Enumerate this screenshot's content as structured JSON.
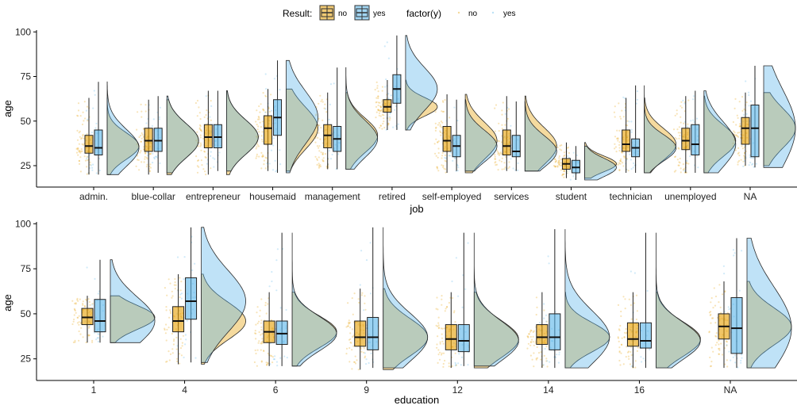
{
  "legend": {
    "result_title": "Result:",
    "result_items": [
      "no",
      "yes"
    ],
    "factor_title": "factor(y)",
    "factor_items": [
      "no",
      "yes"
    ],
    "colors": {
      "no": "#E69F00",
      "yes": "#56B4E9"
    }
  },
  "chart_data": [
    {
      "type": "raincloud",
      "xlabel": "job",
      "ylabel": "age",
      "ylim": [
        13,
        101
      ],
      "yticks": [
        25,
        50,
        75,
        100
      ],
      "categories": [
        "admin.",
        "blue-collar",
        "entrepreneur",
        "housemaid",
        "management",
        "retired",
        "self-employed",
        "services",
        "student",
        "technician",
        "unemployed",
        "NA"
      ],
      "series": [
        {
          "name": "no",
          "box": [
            {
              "min": 20,
              "q1": 32,
              "median": 36,
              "q3": 42,
              "max": 63
            },
            {
              "min": 20,
              "q1": 33,
              "median": 39,
              "q3": 46,
              "max": 62
            },
            {
              "min": 20,
              "q1": 35,
              "median": 41,
              "q3": 48,
              "max": 67
            },
            {
              "min": 22,
              "q1": 37,
              "median": 46,
              "q3": 53,
              "max": 68
            },
            {
              "min": 23,
              "q1": 35,
              "median": 42,
              "q3": 48,
              "max": 66
            },
            {
              "min": 45,
              "q1": 55,
              "median": 58,
              "q3": 62,
              "max": 73
            },
            {
              "min": 21,
              "q1": 33,
              "median": 39,
              "q3": 47,
              "max": 65
            },
            {
              "min": 22,
              "q1": 31,
              "median": 36,
              "q3": 45,
              "max": 64
            },
            {
              "min": 18,
              "q1": 23,
              "median": 26,
              "q3": 29,
              "max": 38
            },
            {
              "min": 21,
              "q1": 33,
              "median": 37,
              "q3": 45,
              "max": 63
            },
            {
              "min": 21,
              "q1": 34,
              "median": 39,
              "q3": 46,
              "max": 64
            },
            {
              "min": 25,
              "q1": 37,
              "median": 46,
              "q3": 52,
              "max": 66
            }
          ]
        },
        {
          "name": "yes",
          "box": [
            {
              "min": 20,
              "q1": 31,
              "median": 35,
              "q3": 45,
              "max": 72
            },
            {
              "min": 21,
              "q1": 33,
              "median": 39,
              "q3": 46,
              "max": 64
            },
            {
              "min": 22,
              "q1": 35,
              "median": 41,
              "q3": 48,
              "max": 67
            },
            {
              "min": 21,
              "q1": 42,
              "median": 52,
              "q3": 62,
              "max": 84
            },
            {
              "min": 23,
              "q1": 33,
              "median": 40,
              "q3": 47,
              "max": 80
            },
            {
              "min": 45,
              "q1": 60,
              "median": 68,
              "q3": 76,
              "max": 98
            },
            {
              "min": 22,
              "q1": 30,
              "median": 36,
              "q3": 42,
              "max": 62
            },
            {
              "min": 22,
              "q1": 30,
              "median": 33,
              "q3": 42,
              "max": 61
            },
            {
              "min": 17,
              "q1": 21,
              "median": 24,
              "q3": 28,
              "max": 36
            },
            {
              "min": 21,
              "q1": 30,
              "median": 35,
              "q3": 40,
              "max": 70
            },
            {
              "min": 21,
              "q1": 31,
              "median": 37,
              "q3": 48,
              "max": 67
            },
            {
              "min": 24,
              "q1": 30,
              "median": 46,
              "q3": 59,
              "max": 81
            }
          ]
        }
      ]
    },
    {
      "type": "raincloud",
      "xlabel": "education",
      "ylabel": "age",
      "ylim": [
        13,
        101
      ],
      "yticks": [
        25,
        50,
        75,
        100
      ],
      "categories": [
        "1",
        "4",
        "6",
        "9",
        "12",
        "14",
        "16",
        "NA"
      ],
      "series": [
        {
          "name": "no",
          "box": [
            {
              "min": 34,
              "q1": 44,
              "median": 48,
              "q3": 53,
              "max": 60
            },
            {
              "min": 22,
              "q1": 40,
              "median": 46,
              "q3": 54,
              "max": 72
            },
            {
              "min": 21,
              "q1": 34,
              "median": 40,
              "q3": 46,
              "max": 62
            },
            {
              "min": 19,
              "q1": 32,
              "median": 37,
              "q3": 46,
              "max": 64
            },
            {
              "min": 20,
              "q1": 30,
              "median": 36,
              "q3": 44,
              "max": 62
            },
            {
              "min": 20,
              "q1": 33,
              "median": 37,
              "q3": 44,
              "max": 62
            },
            {
              "min": 20,
              "q1": 32,
              "median": 36,
              "q3": 45,
              "max": 62
            },
            {
              "min": 20,
              "q1": 36,
              "median": 43,
              "q3": 50,
              "max": 68
            }
          ]
        },
        {
          "name": "yes",
          "box": [
            {
              "min": 34,
              "q1": 40,
              "median": 46,
              "q3": 58,
              "max": 80
            },
            {
              "min": 23,
              "q1": 47,
              "median": 57,
              "q3": 70,
              "max": 98
            },
            {
              "min": 21,
              "q1": 33,
              "median": 39,
              "q3": 46,
              "max": 95
            },
            {
              "min": 20,
              "q1": 30,
              "median": 37,
              "q3": 48,
              "max": 98
            },
            {
              "min": 21,
              "q1": 29,
              "median": 35,
              "q3": 44,
              "max": 95
            },
            {
              "min": 20,
              "q1": 30,
              "median": 37,
              "q3": 50,
              "max": 97
            },
            {
              "min": 20,
              "q1": 31,
              "median": 35,
              "q3": 45,
              "max": 95
            },
            {
              "min": 20,
              "q1": 28,
              "median": 42,
              "q3": 59,
              "max": 92
            }
          ]
        }
      ]
    }
  ]
}
